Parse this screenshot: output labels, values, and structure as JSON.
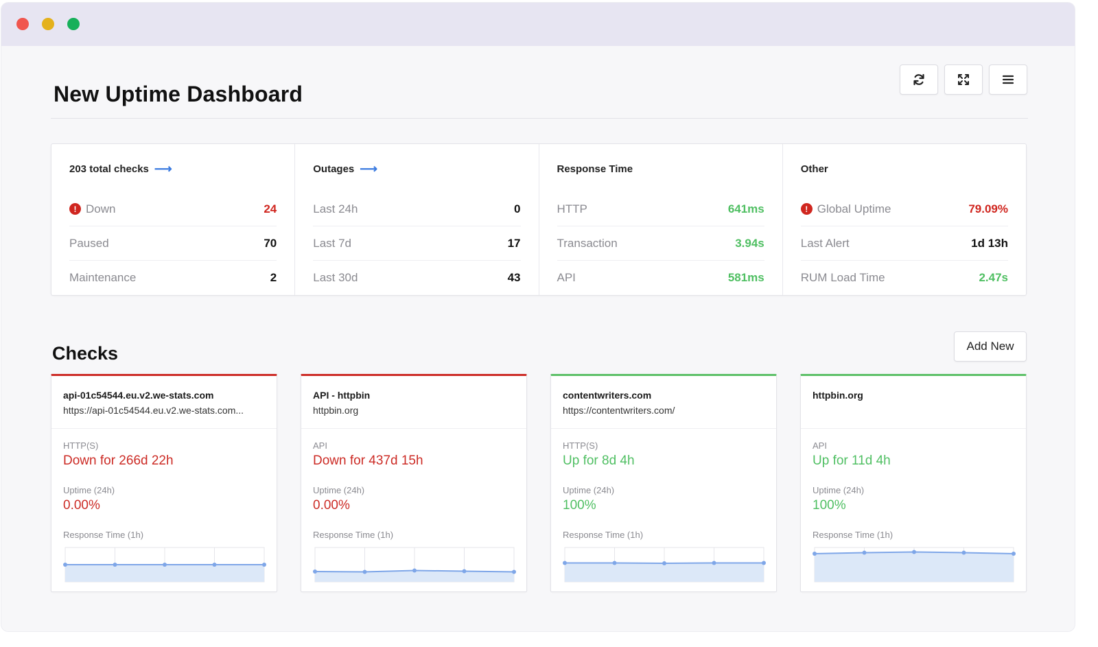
{
  "header": {
    "title": "New Uptime Dashboard"
  },
  "toolbar": {
    "refresh_icon": "refresh-icon",
    "expand_icon": "expand-icon",
    "menu_icon": "menu-icon"
  },
  "stats": [
    {
      "title": "203 total checks",
      "has_arrow": true,
      "rows": [
        {
          "label": "Down",
          "value": "24",
          "alert": true,
          "color": "red"
        },
        {
          "label": "Paused",
          "value": "70"
        },
        {
          "label": "Maintenance",
          "value": "2"
        }
      ]
    },
    {
      "title": "Outages",
      "has_arrow": true,
      "rows": [
        {
          "label": "Last 24h",
          "value": "0"
        },
        {
          "label": "Last 7d",
          "value": "17"
        },
        {
          "label": "Last 30d",
          "value": "43"
        }
      ]
    },
    {
      "title": "Response Time",
      "has_arrow": false,
      "rows": [
        {
          "label": "HTTP",
          "value": "641ms",
          "color": "green"
        },
        {
          "label": "Transaction",
          "value": "3.94s",
          "color": "green"
        },
        {
          "label": "API",
          "value": "581ms",
          "color": "green"
        }
      ]
    },
    {
      "title": "Other",
      "has_arrow": false,
      "rows": [
        {
          "label": "Global Uptime",
          "value": "79.09%",
          "alert": true,
          "color": "red"
        },
        {
          "label": "Last Alert",
          "value": "1d 13h"
        },
        {
          "label": "RUM Load Time",
          "value": "2.47s",
          "color": "green"
        }
      ]
    }
  ],
  "checks": {
    "title": "Checks",
    "add_label": "Add New",
    "cards": [
      {
        "name": "api-01c54544.eu.v2.we-stats.com",
        "url": "https://api-01c54544.eu.v2.we-stats.com...",
        "state": "down",
        "type": "HTTP(S)",
        "status": "Down for 266d 22h",
        "uptime_label": "Uptime (24h)",
        "uptime": "0.00%",
        "response_label": "Response Time (1h)",
        "spark": [
          0.5,
          0.5,
          0.5,
          0.5,
          0.5
        ]
      },
      {
        "name": "API - httpbin",
        "url": "httpbin.org",
        "state": "down",
        "type": "API",
        "status": "Down for 437d 15h",
        "uptime_label": "Uptime (24h)",
        "uptime": "0.00%",
        "response_label": "Response Time (1h)",
        "spark": [
          0.3,
          0.29,
          0.33,
          0.31,
          0.29
        ]
      },
      {
        "name": "contentwriters.com",
        "url": "https://contentwriters.com/",
        "state": "up",
        "type": "HTTP(S)",
        "status": "Up for 8d 4h",
        "uptime_label": "Uptime (24h)",
        "uptime": "100%",
        "response_label": "Response Time (1h)",
        "spark": [
          0.55,
          0.55,
          0.54,
          0.55,
          0.55
        ]
      },
      {
        "name": "httpbin.org",
        "url": "",
        "state": "up",
        "type": "API",
        "status": "Up for 11d 4h",
        "uptime_label": "Uptime (24h)",
        "uptime": "100%",
        "response_label": "Response Time (1h)",
        "spark": [
          0.82,
          0.85,
          0.87,
          0.85,
          0.82
        ]
      }
    ]
  },
  "colors": {
    "red": "#cc2b25",
    "green": "#4fbf62",
    "arrow_blue": "#3b7be0",
    "spark_line": "#7ea6e8",
    "spark_fill": "#dce8f8"
  }
}
